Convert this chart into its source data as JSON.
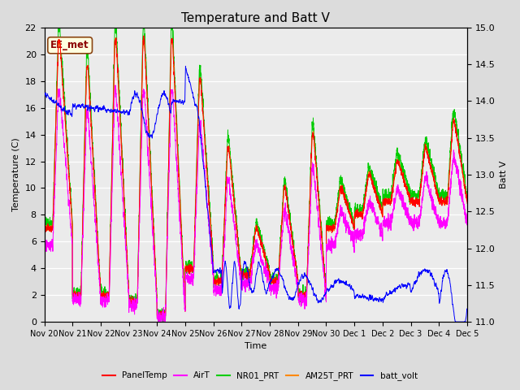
{
  "title": "Temperature and Batt V",
  "xlabel": "Time",
  "ylabel_left": "Temperature (C)",
  "ylabel_right": "Batt V",
  "ylim_left": [
    0,
    22
  ],
  "ylim_right": [
    11.0,
    15.0
  ],
  "yticks_left": [
    0,
    2,
    4,
    6,
    8,
    10,
    12,
    14,
    16,
    18,
    20,
    22
  ],
  "yticks_right": [
    11.0,
    11.5,
    12.0,
    12.5,
    13.0,
    13.5,
    14.0,
    14.5,
    15.0
  ],
  "xtick_labels": [
    "Nov 20",
    "Nov 21",
    "Nov 22",
    "Nov 23",
    "Nov 24",
    "Nov 25",
    "Nov 26",
    "Nov 27",
    "Nov 28",
    "Nov 29",
    "Nov 30",
    "Dec 1",
    "Dec 2",
    "Dec 3",
    "Dec 4",
    "Dec 5"
  ],
  "annotation_text": "EE_met",
  "annotation_color": "#8B0000",
  "annotation_bg": "#FFFFE0",
  "annotation_border": "#8B4513",
  "colors": {
    "PanelTemp": "#FF0000",
    "AirT": "#FF00FF",
    "NR01_PRT": "#00CC00",
    "AM25T_PRT": "#FF8800",
    "batt_volt": "#0000FF"
  },
  "legend_labels": [
    "PanelTemp",
    "AirT",
    "NR01_PRT",
    "AM25T_PRT",
    "batt_volt"
  ],
  "bg_color": "#DCDCDC",
  "plot_bg": "#EBEBEB",
  "grid_color": "#FFFFFF",
  "title_fontsize": 11,
  "axis_fontsize": 8,
  "tick_fontsize": 8
}
